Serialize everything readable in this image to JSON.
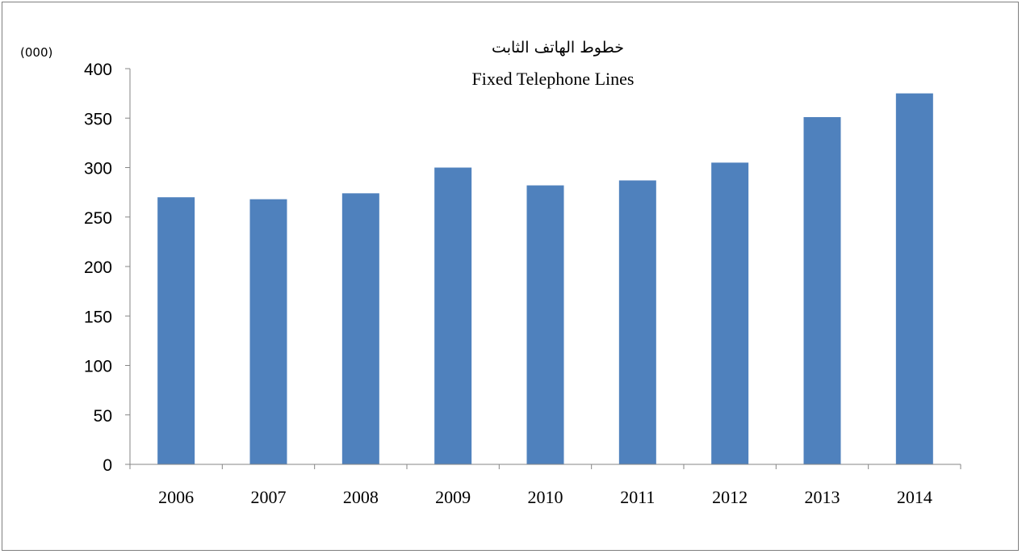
{
  "chart_data": {
    "type": "bar",
    "title": "خطوط الهاتف الثابت",
    "subtitle": "Fixed Telephone Lines",
    "unit_label": "(000)",
    "xlabel": "",
    "ylabel": "",
    "categories": [
      "2006",
      "2007",
      "2008",
      "2009",
      "2010",
      "2011",
      "2012",
      "2013",
      "2014"
    ],
    "values": [
      270,
      268,
      274,
      300,
      282,
      287,
      305,
      351,
      375
    ],
    "ylim": [
      0,
      400
    ],
    "yticks": [
      0,
      50,
      100,
      150,
      200,
      250,
      300,
      350,
      400
    ],
    "bar_color": "#4f81bd",
    "grid": false,
    "legend": "none"
  }
}
